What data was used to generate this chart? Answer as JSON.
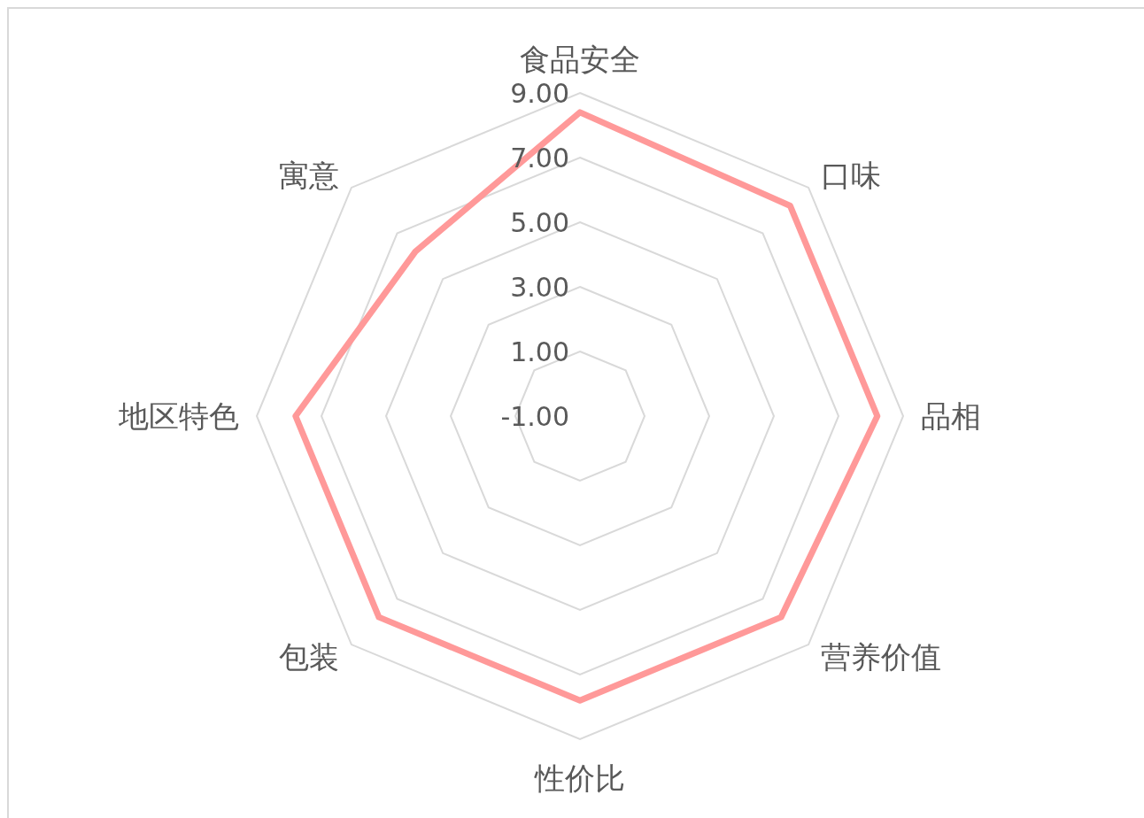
{
  "chart_data": {
    "type": "radar",
    "categories": [
      "食品安全",
      "口味",
      "品相",
      "营养价值",
      "性价比",
      "包装",
      "地区特色",
      "寓意"
    ],
    "series": [
      {
        "color": "#ff9999",
        "values": [
          8.4,
          8.2,
          8.2,
          7.8,
          7.8,
          7.8,
          7.8,
          6.2
        ]
      }
    ],
    "ylim": [
      -1,
      9
    ],
    "yticks": [
      {
        "value": -1,
        "label": "-1.00"
      },
      {
        "value": 1,
        "label": "1.00"
      },
      {
        "value": 3,
        "label": "3.00"
      },
      {
        "value": 5,
        "label": "5.00"
      },
      {
        "value": 7,
        "label": "7.00"
      },
      {
        "value": 9,
        "label": "9.00"
      }
    ],
    "grid": true
  }
}
